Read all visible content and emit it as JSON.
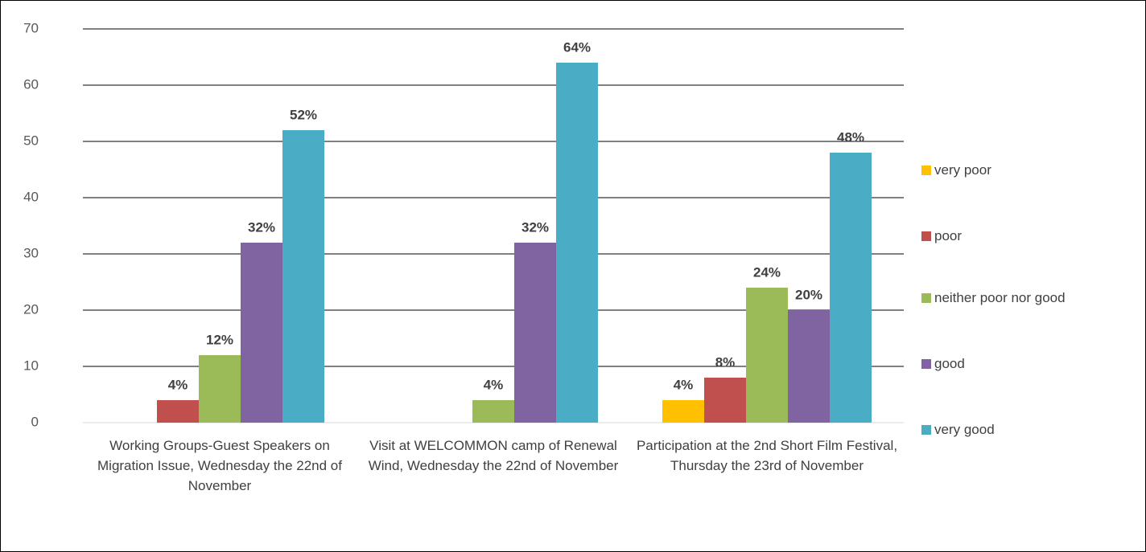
{
  "chart_data": {
    "type": "bar",
    "categories": [
      "Working Groups-Guest Speakers on Migration Issue, Wednesday the 22nd of November",
      "Visit at WELCOMMON camp of Renewal Wind, Wednesday the 22nd of November",
      "Participation at the 2nd Short Film Festival, Thursday the 23rd of November"
    ],
    "series": [
      {
        "name": "very poor",
        "color": "#ffc000",
        "values": [
          0,
          0,
          4
        ],
        "value_labels": [
          null,
          null,
          "4%"
        ]
      },
      {
        "name": "poor",
        "color": "#c0504d",
        "values": [
          4,
          0,
          8
        ],
        "value_labels": [
          "4%",
          null,
          "8%"
        ]
      },
      {
        "name": "neither poor nor good",
        "color": "#9bbb59",
        "values": [
          12,
          4,
          24
        ],
        "value_labels": [
          "12%",
          "4%",
          "24%"
        ]
      },
      {
        "name": "good",
        "color": "#8064a2",
        "values": [
          32,
          32,
          20
        ],
        "value_labels": [
          "32%",
          "32%",
          "20%"
        ]
      },
      {
        "name": "very good",
        "color": "#4bacc6",
        "values": [
          52,
          64,
          48
        ],
        "value_labels": [
          "52%",
          "64%",
          "48%"
        ]
      }
    ],
    "ylim": [
      0,
      70
    ],
    "yticks": [
      0,
      10,
      20,
      30,
      40,
      50,
      60,
      70
    ],
    "grid": true,
    "legend": "right"
  }
}
